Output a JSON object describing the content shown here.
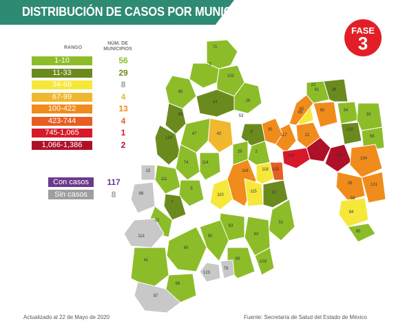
{
  "title": "DISTRIBUCIÓN DE CASOS POR MUNICIPIO",
  "legend": {
    "header_range": "RANGO",
    "header_count": "NÚM. DE MUNICIPIOS",
    "rows": [
      {
        "label": "1-10",
        "count": "56",
        "color": "#8cbd29",
        "count_color": "#8cbd29"
      },
      {
        "label": "11-33",
        "count": "29",
        "color": "#6b8a1e",
        "count_color": "#6b8a1e"
      },
      {
        "label": "34-66",
        "count": "8",
        "color": "#f5e83a",
        "count_color": "#999999"
      },
      {
        "label": "67-99",
        "count": "4",
        "color": "#f0b72f",
        "count_color": "#f0b72f"
      },
      {
        "label": "100-422",
        "count": "13",
        "color": "#f08c1c",
        "count_color": "#f08c1c"
      },
      {
        "label": "423-744",
        "count": "4",
        "color": "#e85d22",
        "count_color": "#e85d22"
      },
      {
        "label": "745-1,065",
        "count": "1",
        "color": "#d8192a",
        "count_color": "#d8192a"
      },
      {
        "label": "1,066-1,386",
        "count": "2",
        "color": "#b01027",
        "count_color": "#b01027"
      }
    ]
  },
  "cases": [
    {
      "label": "Con casos",
      "count": "117",
      "color": "#6a3a8c",
      "count_color": "#6a3a8c"
    },
    {
      "label": "Sin casos",
      "count": "8",
      "color": "#9e9e9e",
      "count_color": "#9e9e9e"
    }
  ],
  "fase": {
    "label": "FASE",
    "number": "3",
    "color": "#e21f26"
  },
  "footer": {
    "updated": "Actualizado al 22 de Mayo de 2020",
    "source": "Fuente: Secretaría de Salud del Estado de México"
  },
  "map": {
    "colors": {
      "light_green": "#8cbd29",
      "dark_green": "#6b8a1e",
      "yellow": "#f5e83a",
      "gold": "#f0b72f",
      "orange": "#f08c1c",
      "dark_orange": "#e85d22",
      "red": "#d8192a",
      "dark_red": "#b01027",
      "gray": "#c8c8c8"
    },
    "labels": [
      "71",
      "3",
      "85",
      "102",
      "26",
      "14",
      "69",
      "124",
      "42",
      "47",
      "74",
      "111",
      "114",
      "5",
      "7",
      "32",
      "110",
      "116",
      "118",
      "105",
      "115",
      "37",
      "51",
      "62",
      "63",
      "60",
      "90",
      "99",
      "103",
      "113",
      "88",
      "15",
      "123",
      "78",
      "41",
      "66",
      "97",
      "117",
      "82",
      "81",
      "80",
      "21",
      "6",
      "125",
      "100",
      "34",
      "33",
      "120",
      "59",
      "104",
      "121",
      "28",
      "84",
      "65",
      "36",
      "89",
      "30",
      "9",
      "2",
      "29",
      "53",
      "22",
      "58"
    ]
  }
}
